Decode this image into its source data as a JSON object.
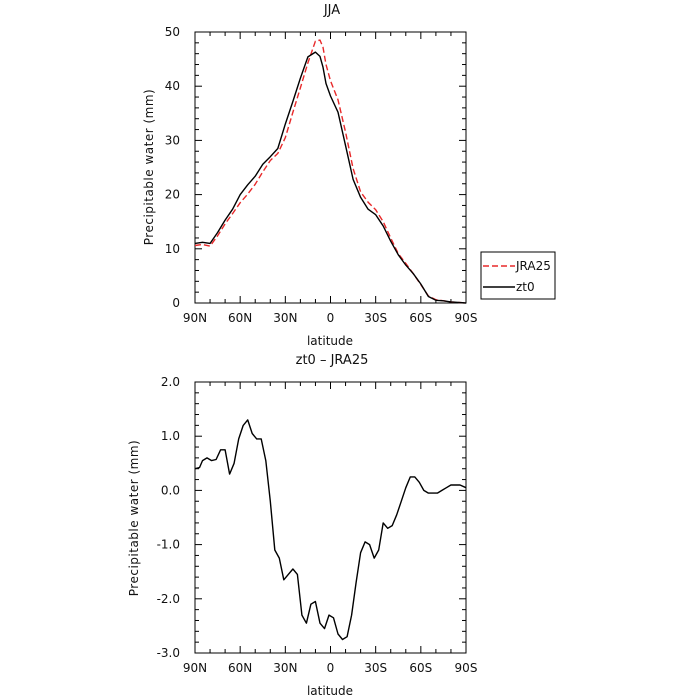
{
  "chart_data": [
    {
      "type": "line",
      "title": "JJA",
      "xlabel": "latitude",
      "ylabel": "Precipitable water (mm)",
      "x_ticks": [
        -90,
        -60,
        -30,
        0,
        30,
        60,
        90
      ],
      "x_tick_labels": [
        "90N",
        "60N",
        "30N",
        "0",
        "30S",
        "60S",
        "90S"
      ],
      "xlim": [
        -90,
        90
      ],
      "ylim": [
        0,
        50
      ],
      "y_ticks": [
        0,
        10,
        20,
        30,
        40,
        50
      ],
      "y_tick_labels": [
        "0",
        "10",
        "20",
        "30",
        "40",
        "50"
      ],
      "legend_position": "right",
      "series": [
        {
          "name": "JRA25",
          "color": "#e8292a",
          "dash": "dashed",
          "x": [
            -90,
            -85,
            -80,
            -75,
            -70,
            -65,
            -60,
            -55,
            -50,
            -45,
            -40,
            -35,
            -30,
            -25,
            -20,
            -15,
            -10,
            -7,
            -5,
            -3,
            0,
            5,
            10,
            15,
            20,
            25,
            30,
            35,
            40,
            45,
            50,
            55,
            60,
            65,
            70,
            75,
            80,
            85,
            90
          ],
          "values": [
            10.6,
            10.8,
            10.5,
            12.4,
            14.6,
            16.5,
            18.5,
            20.1,
            21.9,
            24.2,
            26.3,
            27.6,
            30.5,
            35.2,
            39.7,
            44.3,
            48.3,
            48.5,
            47.2,
            44.0,
            41.0,
            37.5,
            31.5,
            24.8,
            20.5,
            18.6,
            17.2,
            15.0,
            12.0,
            9.1,
            7.3,
            5.4,
            3.4,
            1.3,
            0.6,
            0.4,
            0.2,
            0.1,
            0.0
          ]
        },
        {
          "name": "zt0",
          "color": "#000000",
          "dash": "solid",
          "x": [
            -90,
            -85,
            -80,
            -75,
            -70,
            -65,
            -60,
            -55,
            -50,
            -45,
            -40,
            -35,
            -30,
            -25,
            -20,
            -15,
            -10,
            -7,
            -5,
            -3,
            0,
            5,
            10,
            15,
            20,
            25,
            30,
            35,
            40,
            45,
            50,
            55,
            60,
            65,
            70,
            75,
            80,
            85,
            90
          ],
          "values": [
            11.0,
            11.2,
            11.0,
            13.0,
            15.3,
            17.3,
            20.0,
            21.8,
            23.4,
            25.6,
            27.0,
            28.5,
            33.0,
            37.2,
            41.5,
            45.4,
            46.3,
            45.5,
            43.5,
            40.5,
            38.2,
            35.2,
            29.0,
            22.8,
            19.5,
            17.3,
            16.3,
            14.2,
            11.4,
            8.9,
            7.0,
            5.4,
            3.5,
            1.2,
            0.5,
            0.4,
            0.2,
            0.1,
            0.0
          ]
        }
      ]
    },
    {
      "type": "line",
      "title": "zt0 – JRA25",
      "xlabel": "latitude",
      "ylabel": "Precipitable water (mm)",
      "x_ticks": [
        -90,
        -60,
        -30,
        0,
        30,
        60,
        90
      ],
      "x_tick_labels": [
        "90N",
        "60N",
        "30N",
        "0",
        "30S",
        "60S",
        "90S"
      ],
      "xlim": [
        -90,
        90
      ],
      "ylim": [
        -3.0,
        2.0
      ],
      "y_ticks": [
        -3.0,
        -2.0,
        -1.0,
        0.0,
        1.0,
        2.0
      ],
      "y_tick_labels": [
        "-3.0",
        "-2.0",
        "-1.0",
        "0.0",
        "1.0",
        "2.0"
      ],
      "series": [
        {
          "color": "#000000",
          "dash": "solid",
          "x": [
            -90,
            -87,
            -85,
            -82,
            -79,
            -76,
            -73,
            -70,
            -67,
            -64,
            -61,
            -58,
            -55,
            -52,
            -49,
            -46,
            -43,
            -40,
            -37,
            -34,
            -31,
            -28,
            -25,
            -22,
            -19,
            -16,
            -13,
            -10,
            -7,
            -4,
            -1,
            2,
            5,
            8,
            11,
            14,
            17,
            20,
            23,
            26,
            29,
            32,
            35,
            38,
            41,
            44,
            47,
            50,
            53,
            56,
            59,
            62,
            65,
            68,
            71,
            74,
            77,
            80,
            83,
            86,
            90
          ],
          "values": [
            0.4,
            0.42,
            0.55,
            0.6,
            0.55,
            0.57,
            0.75,
            0.75,
            0.3,
            0.5,
            0.95,
            1.2,
            1.3,
            1.05,
            0.95,
            0.95,
            0.55,
            -0.2,
            -1.1,
            -1.25,
            -1.65,
            -1.55,
            -1.45,
            -1.55,
            -2.3,
            -2.45,
            -2.1,
            -2.05,
            -2.45,
            -2.55,
            -2.3,
            -2.35,
            -2.65,
            -2.75,
            -2.7,
            -2.3,
            -1.7,
            -1.15,
            -0.95,
            -1.0,
            -1.25,
            -1.1,
            -0.6,
            -0.7,
            -0.65,
            -0.45,
            -0.2,
            0.05,
            0.25,
            0.25,
            0.15,
            0.0,
            -0.05,
            -0.05,
            -0.05,
            0.0,
            0.05,
            0.1,
            0.1,
            0.1,
            0.05
          ]
        }
      ]
    }
  ]
}
